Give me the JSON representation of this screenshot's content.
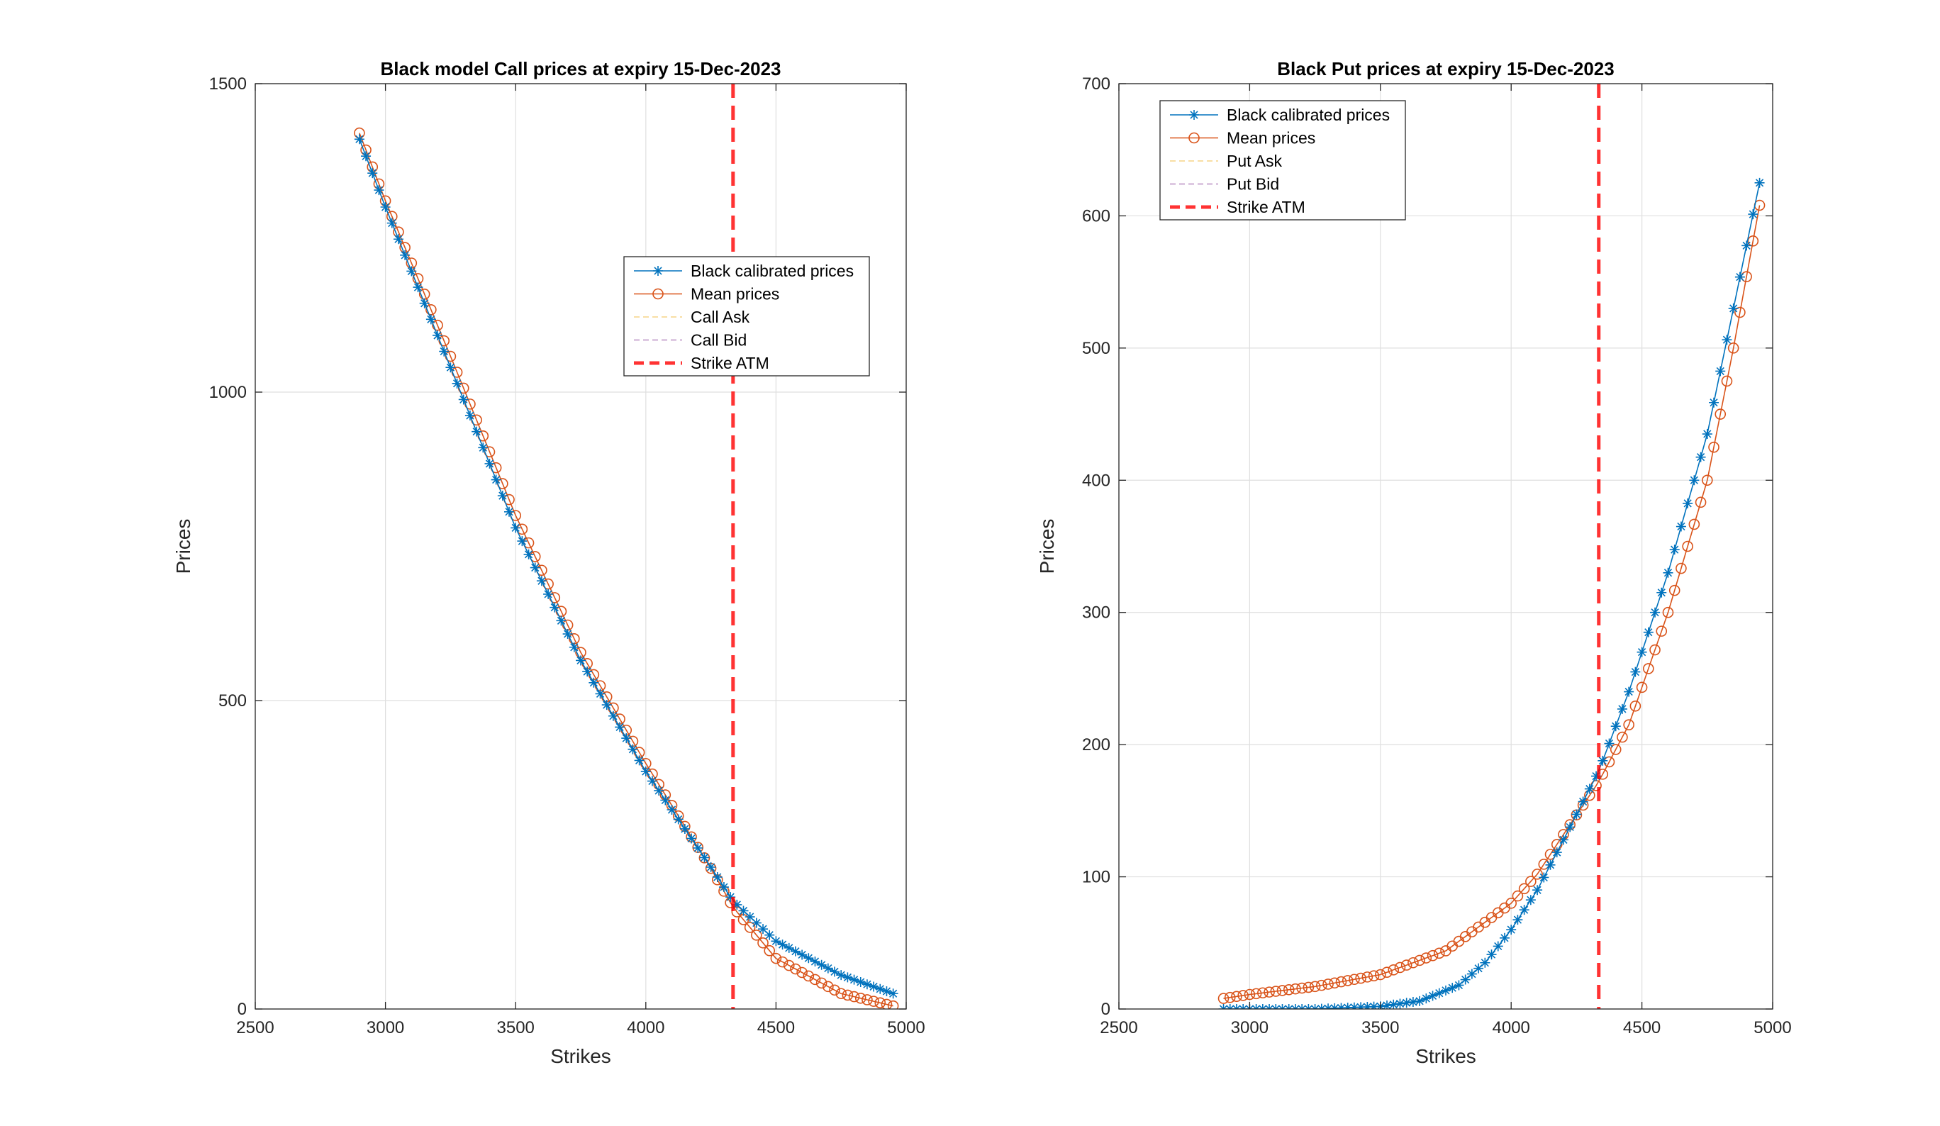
{
  "chart_data": [
    {
      "type": "line",
      "title": "Black model Call prices at expiry 15-Dec-2023",
      "xlabel": "Strikes",
      "ylabel": "Prices",
      "xlim": [
        2500,
        5000
      ],
      "ylim": [
        0,
        1500
      ],
      "xticks": [
        2500,
        3000,
        3500,
        4000,
        4500,
        5000
      ],
      "yticks": [
        0,
        500,
        1000,
        1500
      ],
      "grid": true,
      "legend_position": "upper-right (inside)",
      "strike_atm": 4335,
      "x_range": [
        2900,
        4950
      ],
      "x_step": 25,
      "series": [
        {
          "name": "Black calibrated prices",
          "color": "#0072BD",
          "marker": "asterisk",
          "points": [
            [
              2900,
              1410
            ],
            [
              3000,
              1300
            ],
            [
              3250,
              1040
            ],
            [
              3500,
              780
            ],
            [
              3750,
              565
            ],
            [
              4000,
              385
            ],
            [
              4250,
              230
            ],
            [
              4335,
              175
            ],
            [
              4500,
              110
            ],
            [
              4750,
              55
            ],
            [
              4950,
              25
            ]
          ]
        },
        {
          "name": "Mean prices",
          "color": "#D95319",
          "marker": "circle",
          "points": [
            [
              2900,
              1420
            ],
            [
              3000,
              1310
            ],
            [
              3250,
              1058
            ],
            [
              3500,
              800
            ],
            [
              3750,
              578
            ],
            [
              4000,
              398
            ],
            [
              4250,
              228
            ],
            [
              4335,
              165
            ],
            [
              4500,
              82
            ],
            [
              4750,
              25
            ],
            [
              4950,
              5
            ]
          ]
        },
        {
          "name": "Call Ask",
          "color": "#EDB120",
          "style": "dashed",
          "points": []
        },
        {
          "name": "Call Bid",
          "color": "#7E2F8E",
          "style": "dashed",
          "points": []
        },
        {
          "name": "Strike ATM",
          "color": "#FF0000",
          "style": "dashed-thick",
          "points": []
        }
      ]
    },
    {
      "type": "line",
      "title": "Black Put prices at expiry 15-Dec-2023",
      "xlabel": "Strikes",
      "ylabel": "Prices",
      "xlim": [
        2500,
        5000
      ],
      "ylim": [
        0,
        700
      ],
      "xticks": [
        2500,
        3000,
        3500,
        4000,
        4500,
        5000
      ],
      "yticks": [
        0,
        100,
        200,
        300,
        400,
        500,
        600,
        700
      ],
      "grid": true,
      "legend_position": "upper-left (inside)",
      "strike_atm": 4335,
      "x_range": [
        2900,
        4950
      ],
      "x_step": 25,
      "series": [
        {
          "name": "Black calibrated prices",
          "color": "#0072BD",
          "marker": "asterisk",
          "points": [
            [
              2900,
              0
            ],
            [
              3250,
              0
            ],
            [
              3500,
              2
            ],
            [
              3650,
              6
            ],
            [
              3800,
              18
            ],
            [
              3900,
              35
            ],
            [
              4000,
              60
            ],
            [
              4100,
              90
            ],
            [
              4200,
              128
            ],
            [
              4335,
              180
            ],
            [
              4450,
              240
            ],
            [
              4600,
              330
            ],
            [
              4750,
              435
            ],
            [
              4850,
              530
            ],
            [
              4950,
              625
            ]
          ]
        },
        {
          "name": "Mean prices",
          "color": "#D95319",
          "marker": "circle",
          "points": [
            [
              2900,
              8
            ],
            [
              3000,
              11
            ],
            [
              3250,
              17
            ],
            [
              3500,
              26
            ],
            [
              3750,
              44
            ],
            [
              4000,
              80
            ],
            [
              4100,
              102
            ],
            [
              4200,
              132
            ],
            [
              4335,
              172
            ],
            [
              4450,
              215
            ],
            [
              4600,
              300
            ],
            [
              4750,
              400
            ],
            [
              4850,
              500
            ],
            [
              4950,
              608
            ]
          ]
        },
        {
          "name": "Put Ask",
          "color": "#EDB120",
          "style": "dashed",
          "points": []
        },
        {
          "name": "Put Bid",
          "color": "#7E2F8E",
          "style": "dashed",
          "points": []
        },
        {
          "name": "Strike ATM",
          "color": "#FF0000",
          "style": "dashed-thick",
          "points": []
        }
      ]
    }
  ]
}
